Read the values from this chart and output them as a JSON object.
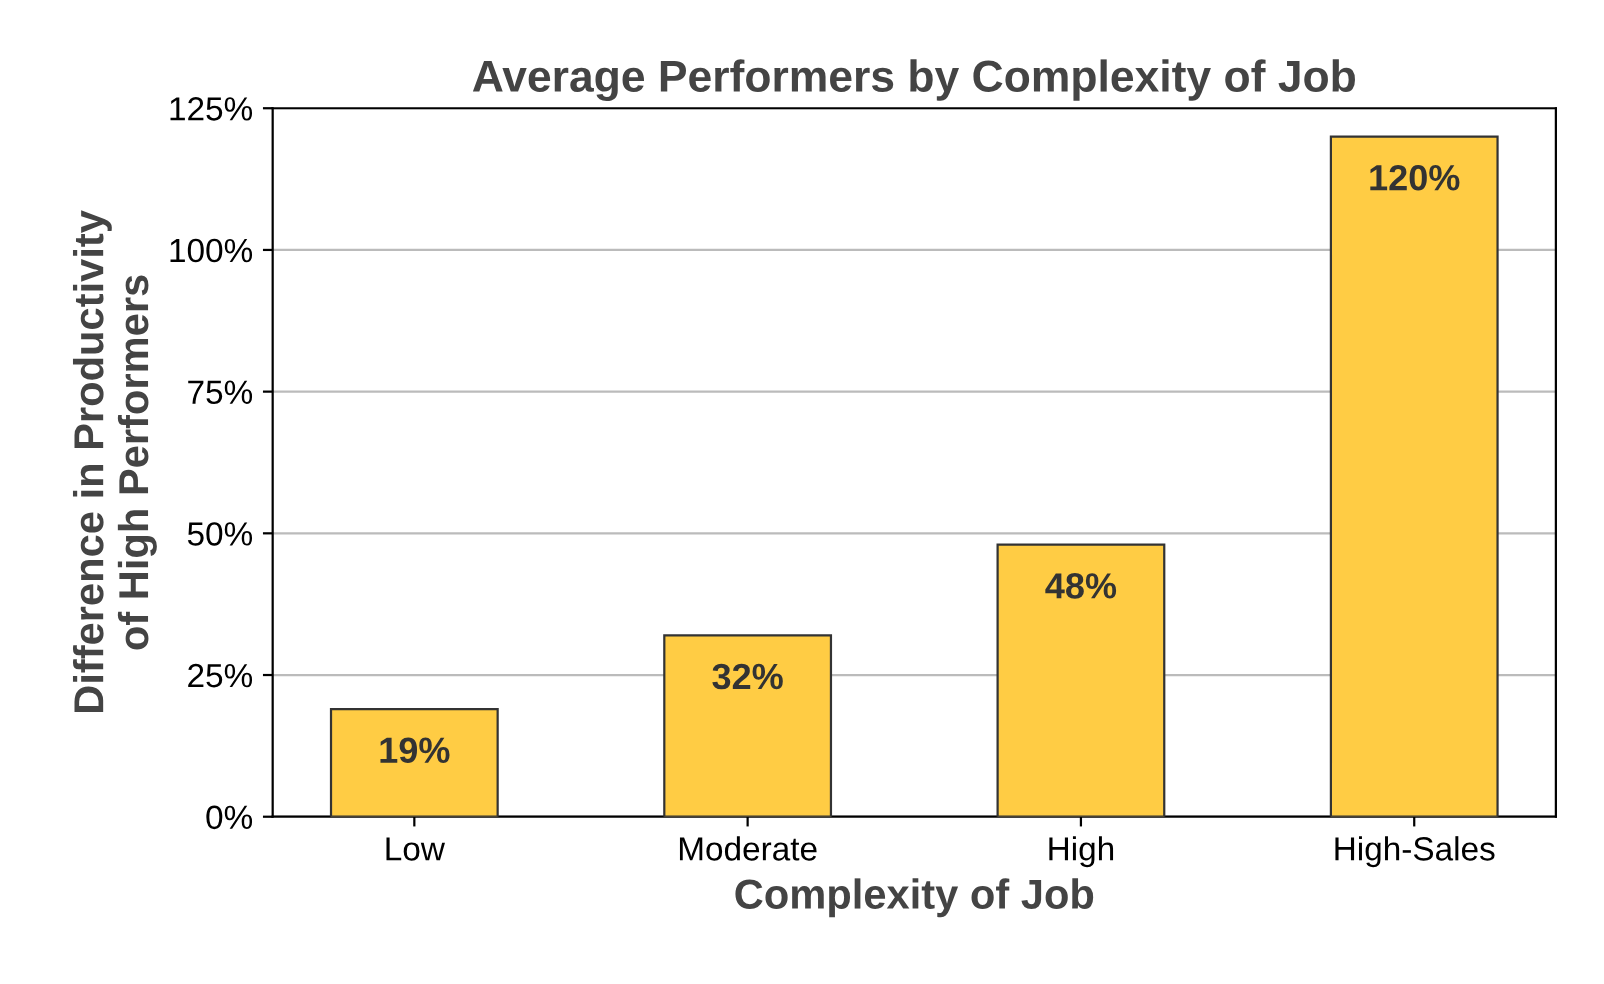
{
  "chart_data": {
    "type": "bar",
    "title": "Average Performers by Complexity of Job",
    "xlabel": "Complexity of Job",
    "ylabel": "Difference in Productivity\nof High Performers",
    "categories": [
      "Low",
      "Moderate",
      "High",
      "High-Sales"
    ],
    "values": [
      19,
      32,
      48,
      120
    ],
    "value_labels": [
      "19%",
      "32%",
      "48%",
      "120%"
    ],
    "color": "#ffcc44",
    "ylim": [
      0,
      125
    ],
    "yticks": [
      {
        "value": 0,
        "label": "0%"
      },
      {
        "value": 25,
        "label": "25%"
      },
      {
        "value": 50,
        "label": "50%"
      },
      {
        "value": 75,
        "label": "75%"
      },
      {
        "value": 100,
        "label": "100%"
      },
      {
        "value": 125,
        "label": "125%"
      }
    ],
    "grid": "y"
  }
}
